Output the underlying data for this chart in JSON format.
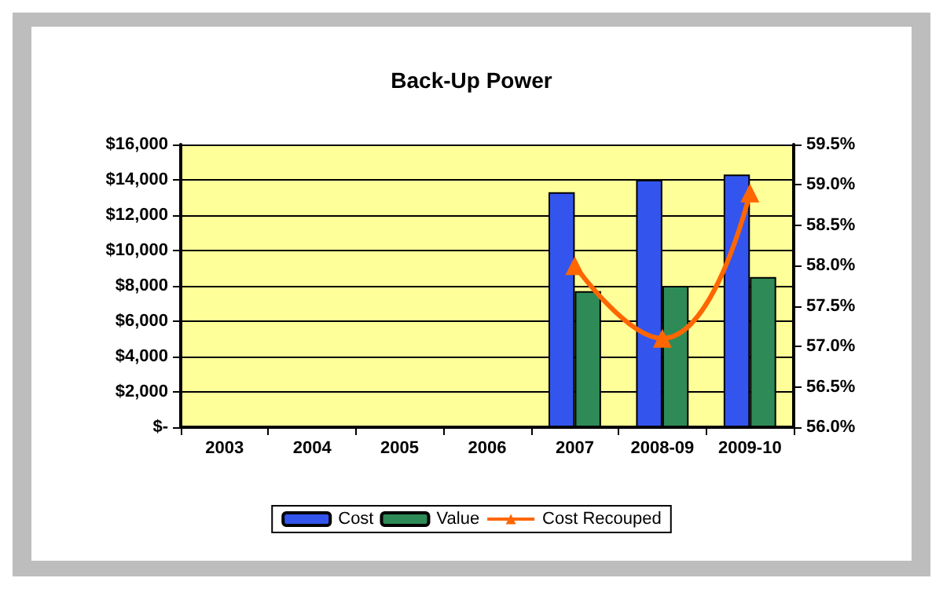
{
  "chart_data": {
    "type": "bar",
    "title": "Back-Up Power",
    "categories": [
      "2003",
      "2004",
      "2005",
      "2006",
      "2007",
      "2008-09",
      "2009-10"
    ],
    "series": [
      {
        "name": "Cost",
        "color": "#3355ee",
        "values": [
          null,
          null,
          null,
          null,
          13300,
          14000,
          14300
        ]
      },
      {
        "name": "Value",
        "color": "#2e8b57",
        "values": [
          null,
          null,
          null,
          null,
          7700,
          8000,
          8500
        ]
      },
      {
        "name": "Cost Recouped",
        "type": "line",
        "axis": "y2",
        "color": "#ff6600",
        "marker": "triangle",
        "values": [
          null,
          null,
          null,
          null,
          58.0,
          57.1,
          58.9
        ]
      }
    ],
    "ylim": [
      0,
      16000
    ],
    "yticks": [
      {
        "value": 0,
        "label": "$-"
      },
      {
        "value": 2000,
        "label": "$2,000"
      },
      {
        "value": 4000,
        "label": "$4,000"
      },
      {
        "value": 6000,
        "label": "$6,000"
      },
      {
        "value": 8000,
        "label": "$8,000"
      },
      {
        "value": 10000,
        "label": "$10,000"
      },
      {
        "value": 12000,
        "label": "$12,000"
      },
      {
        "value": 14000,
        "label": "$14,000"
      },
      {
        "value": 16000,
        "label": "$16,000"
      }
    ],
    "y2lim": [
      56.0,
      59.5
    ],
    "y2ticks": [
      {
        "value": 56.0,
        "label": "56.0%"
      },
      {
        "value": 56.5,
        "label": "56.5%"
      },
      {
        "value": 57.0,
        "label": "57.0%"
      },
      {
        "value": 57.5,
        "label": "57.5%"
      },
      {
        "value": 58.0,
        "label": "58.0%"
      },
      {
        "value": 58.5,
        "label": "58.5%"
      },
      {
        "value": 59.0,
        "label": "59.0%"
      },
      {
        "value": 59.5,
        "label": "59.5%"
      }
    ],
    "grid": "y",
    "legend": "bottom"
  }
}
